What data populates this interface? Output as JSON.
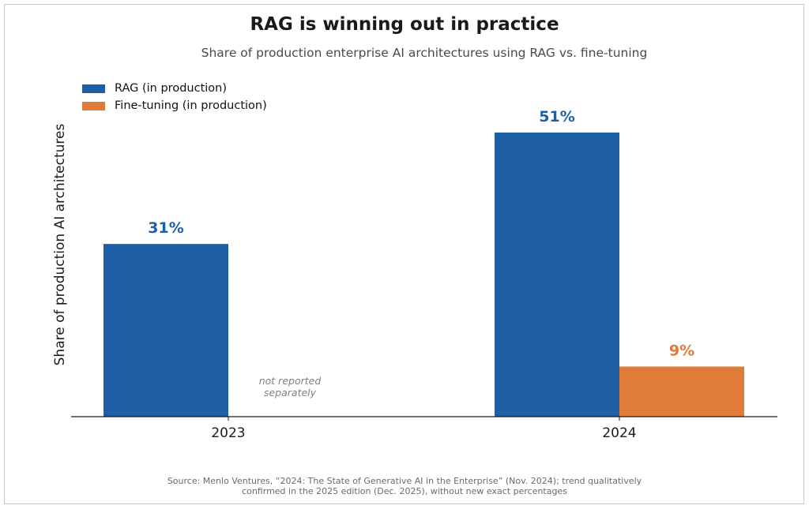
{
  "chart_data": {
    "type": "bar",
    "title": "RAG is winning out in practice",
    "subtitle": "Share of production enterprise AI architectures using RAG vs. fine-tuning",
    "xlabel": "",
    "ylabel": "Share of production AI architectures",
    "categories": [
      "2023",
      "2024"
    ],
    "ylim": [
      0,
      55
    ],
    "grid": false,
    "legend_position": "top-left",
    "series": [
      {
        "name": "RAG (in production)",
        "color": "#1f5fa6",
        "values": [
          31,
          51
        ],
        "labels": [
          "31%",
          "51%"
        ]
      },
      {
        "name": "Fine-tuning (in production)",
        "color": "#e07b39",
        "values": [
          null,
          9
        ],
        "labels": [
          null,
          "9%"
        ]
      }
    ],
    "annotations": [
      {
        "category": "2023",
        "series": "Fine-tuning (in production)",
        "lines": [
          "not reported",
          "separately"
        ]
      }
    ],
    "source_lines": [
      "Source: Menlo Ventures, “2024: The State of Generative AI in the Enterprise” (Nov. 2024); trend qualitatively",
      "confirmed in the 2025 edition (Dec. 2025), without new exact percentages"
    ]
  }
}
